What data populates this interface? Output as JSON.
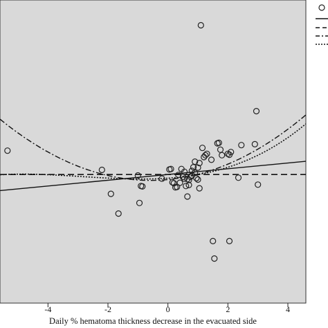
{
  "chart_data": {
    "type": "scatter",
    "title": "",
    "xlabel": "Daily % hematoma thickness decrease in the evacuated side",
    "ylabel": "",
    "xlim": [
      -5.6,
      4.6
    ],
    "ylim": [
      -2.8,
      3.8
    ],
    "x_ticks": [
      -4,
      -2,
      0,
      2,
      4
    ],
    "x_tick_labels": [
      "-4",
      "-2",
      "0",
      "2",
      "4"
    ],
    "grid": false,
    "legend_placement": "top-right",
    "colors": {
      "plot_background": "#d9d9d9",
      "outside_background": "#ffffff",
      "marker_edge": "#222222",
      "line": "#111111"
    },
    "observed_points": {
      "x": [
        -5.35,
        -2.2,
        -1.9,
        -1.65,
        -1.0,
        -0.95,
        -0.9,
        -0.85,
        -0.2,
        0.05,
        0.1,
        0.15,
        0.2,
        0.25,
        0.3,
        0.35,
        0.4,
        0.45,
        0.5,
        0.55,
        0.55,
        0.6,
        0.65,
        0.65,
        0.7,
        0.7,
        0.75,
        0.8,
        0.8,
        0.85,
        0.9,
        0.9,
        0.95,
        1.0,
        1.0,
        1.05,
        1.05,
        1.1,
        1.15,
        1.2,
        1.25,
        1.3,
        1.45,
        1.5,
        1.55,
        1.65,
        1.7,
        1.75,
        1.8,
        2.0,
        2.05,
        2.05,
        2.1,
        2.35,
        2.45,
        2.9,
        2.95,
        3.0
      ],
      "y": [
        0.52,
        0.1,
        -0.42,
        -0.85,
        -0.02,
        -0.62,
        -0.25,
        -0.26,
        -0.09,
        0.11,
        0.12,
        -0.17,
        -0.19,
        -0.28,
        -0.27,
        -0.01,
        -0.18,
        0.12,
        -0.05,
        -0.09,
        0.06,
        -0.25,
        -0.48,
        -0.1,
        -0.12,
        -0.23,
        -0.05,
        -0.02,
        0.08,
        0.16,
        0.04,
        0.28,
        -0.08,
        0.15,
        -0.11,
        0.25,
        -0.3,
        3.25,
        0.58,
        0.38,
        0.42,
        0.45,
        0.32,
        -1.45,
        -1.83,
        0.68,
        0.69,
        0.54,
        0.42,
        0.45,
        0.43,
        -1.45,
        0.49,
        -0.07,
        0.64,
        0.66,
        1.38,
        -0.22
      ]
    },
    "fits": {
      "x_range": [
        -5.6,
        4.6
      ],
      "linear": {
        "intercept": 0.0,
        "slope": 0.0625
      },
      "quadratic": {
        "intercept": -0.11,
        "linear": 0.062,
        "quadratic": 0.053
      },
      "cubic": {
        "intercept": -0.08,
        "linear": 0.045,
        "quadratic": 0.03,
        "cubic": 0.0035
      },
      "constant": 0.0
    }
  }
}
